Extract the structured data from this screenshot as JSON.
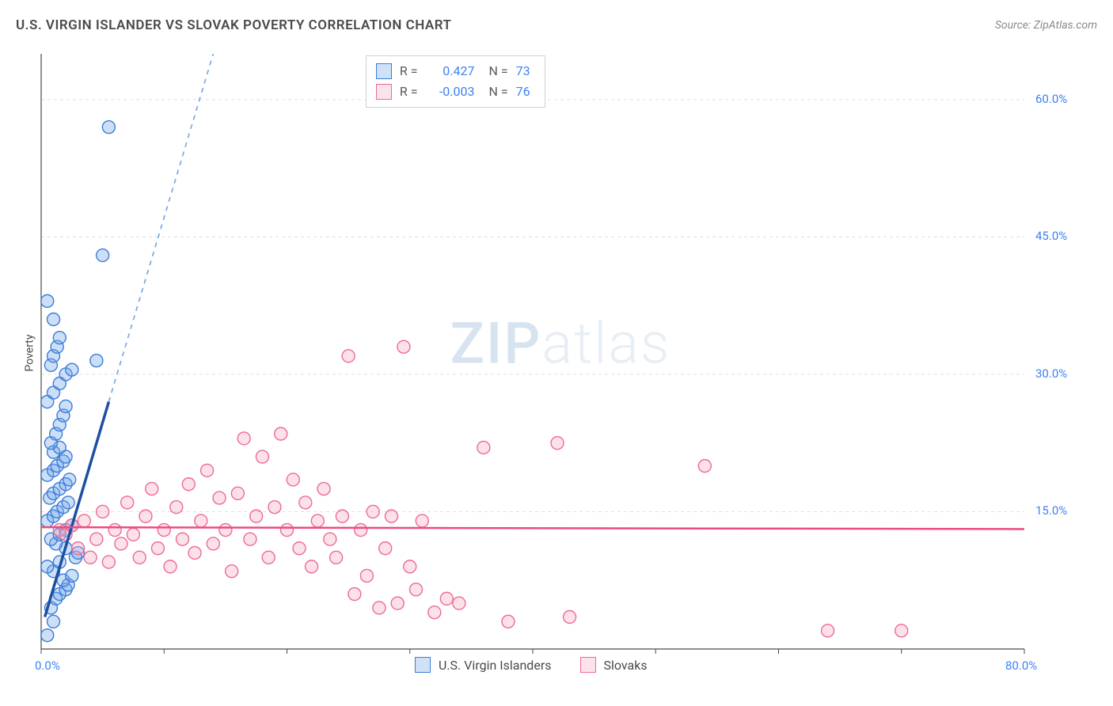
{
  "title": "U.S. VIRGIN ISLANDER VS SLOVAK POVERTY CORRELATION CHART",
  "source_prefix": "Source: ",
  "source": "ZipAtlas.com",
  "watermark_bold": "ZIP",
  "watermark_light": "atlas",
  "y_axis_label": "Poverty",
  "chart": {
    "type": "scatter",
    "background_color": "#ffffff",
    "grid_color": "#e0e0e0",
    "axis_line_color": "#4a4a4a",
    "xlim": [
      0,
      80
    ],
    "ylim": [
      0,
      65
    ],
    "x_ticks": [
      0,
      10,
      20,
      30,
      40,
      50,
      60,
      70,
      80
    ],
    "x_tick_labels": [
      "0.0%",
      "",
      "",
      "",
      "",
      "",
      "",
      "",
      "80.0%"
    ],
    "y_ticks": [
      15,
      30,
      45,
      60
    ],
    "y_tick_labels": [
      "15.0%",
      "30.0%",
      "45.0%",
      "60.0%"
    ],
    "tick_label_color": "#3b82f6",
    "tick_label_fontsize": 15,
    "marker_radius": 8,
    "marker_fill_opacity": 0.35,
    "marker_stroke_width": 1.4,
    "series": [
      {
        "name": "U.S. Virgin Islanders",
        "color": "#6fa4e8",
        "stroke": "#3b7dd8",
        "r_value": "0.427",
        "n_value": "73",
        "trend": {
          "solid_color": "#1e4fa3",
          "solid_width": 3.5,
          "dash_color": "#6fa4e8",
          "dash_width": 1.6,
          "solid": [
            [
              0.3,
              3.5
            ],
            [
              5.5,
              27.0
            ]
          ],
          "dashed": [
            [
              5.5,
              27.0
            ],
            [
              14.0,
              65.0
            ]
          ]
        },
        "points": [
          [
            0.5,
            1.5
          ],
          [
            1.0,
            3.0
          ],
          [
            0.8,
            4.5
          ],
          [
            1.2,
            5.5
          ],
          [
            1.5,
            6.0
          ],
          [
            2.0,
            6.5
          ],
          [
            2.2,
            7.0
          ],
          [
            1.8,
            7.5
          ],
          [
            2.5,
            8.0
          ],
          [
            1.0,
            8.5
          ],
          [
            0.5,
            9.0
          ],
          [
            1.5,
            9.5
          ],
          [
            2.8,
            10.0
          ],
          [
            3.0,
            10.5
          ],
          [
            2.0,
            11.0
          ],
          [
            1.2,
            11.5
          ],
          [
            0.8,
            12.0
          ],
          [
            1.5,
            12.5
          ],
          [
            2.0,
            13.0
          ],
          [
            2.5,
            13.5
          ],
          [
            0.5,
            14.0
          ],
          [
            1.0,
            14.5
          ],
          [
            1.3,
            15.0
          ],
          [
            1.8,
            15.5
          ],
          [
            2.2,
            16.0
          ],
          [
            0.7,
            16.5
          ],
          [
            1.0,
            17.0
          ],
          [
            1.5,
            17.5
          ],
          [
            2.0,
            18.0
          ],
          [
            2.3,
            18.5
          ],
          [
            0.5,
            19.0
          ],
          [
            1.0,
            19.5
          ],
          [
            1.3,
            20.0
          ],
          [
            1.8,
            20.5
          ],
          [
            2.0,
            21.0
          ],
          [
            1.0,
            21.5
          ],
          [
            1.5,
            22.0
          ],
          [
            0.8,
            22.5
          ],
          [
            1.2,
            23.5
          ],
          [
            1.5,
            24.5
          ],
          [
            1.8,
            25.5
          ],
          [
            2.0,
            26.5
          ],
          [
            0.5,
            27.0
          ],
          [
            1.0,
            28.0
          ],
          [
            1.5,
            29.0
          ],
          [
            2.0,
            30.0
          ],
          [
            2.5,
            30.5
          ],
          [
            0.8,
            31.0
          ],
          [
            4.5,
            31.5
          ],
          [
            1.0,
            32.0
          ],
          [
            1.3,
            33.0
          ],
          [
            1.5,
            34.0
          ],
          [
            1.0,
            36.0
          ],
          [
            0.5,
            38.0
          ],
          [
            5.0,
            43.0
          ],
          [
            5.5,
            57.0
          ]
        ]
      },
      {
        "name": "Slovaks",
        "color": "#f5a8c0",
        "stroke": "#ec6b95",
        "r_value": "-0.003",
        "n_value": "76",
        "trend": {
          "solid_color": "#ec4b7c",
          "solid_width": 2.5,
          "solid": [
            [
              0,
              13.3
            ],
            [
              80,
              13.1
            ]
          ]
        },
        "points": [
          [
            1.5,
            13.0
          ],
          [
            2.0,
            12.5
          ],
          [
            2.5,
            13.5
          ],
          [
            3.0,
            11.0
          ],
          [
            3.5,
            14.0
          ],
          [
            4.0,
            10.0
          ],
          [
            4.5,
            12.0
          ],
          [
            5.0,
            15.0
          ],
          [
            5.5,
            9.5
          ],
          [
            6.0,
            13.0
          ],
          [
            6.5,
            11.5
          ],
          [
            7.0,
            16.0
          ],
          [
            7.5,
            12.5
          ],
          [
            8.0,
            10.0
          ],
          [
            8.5,
            14.5
          ],
          [
            9.0,
            17.5
          ],
          [
            9.5,
            11.0
          ],
          [
            10.0,
            13.0
          ],
          [
            10.5,
            9.0
          ],
          [
            11.0,
            15.5
          ],
          [
            11.5,
            12.0
          ],
          [
            12.0,
            18.0
          ],
          [
            12.5,
            10.5
          ],
          [
            13.0,
            14.0
          ],
          [
            13.5,
            19.5
          ],
          [
            14.0,
            11.5
          ],
          [
            14.5,
            16.5
          ],
          [
            15.0,
            13.0
          ],
          [
            15.5,
            8.5
          ],
          [
            16.0,
            17.0
          ],
          [
            16.5,
            23.0
          ],
          [
            17.0,
            12.0
          ],
          [
            17.5,
            14.5
          ],
          [
            18.0,
            21.0
          ],
          [
            18.5,
            10.0
          ],
          [
            19.0,
            15.5
          ],
          [
            19.5,
            23.5
          ],
          [
            20.0,
            13.0
          ],
          [
            20.5,
            18.5
          ],
          [
            21.0,
            11.0
          ],
          [
            21.5,
            16.0
          ],
          [
            22.0,
            9.0
          ],
          [
            22.5,
            14.0
          ],
          [
            23.0,
            17.5
          ],
          [
            23.5,
            12.0
          ],
          [
            24.0,
            10.0
          ],
          [
            24.5,
            14.5
          ],
          [
            25.0,
            32.0
          ],
          [
            25.5,
            6.0
          ],
          [
            26.0,
            13.0
          ],
          [
            26.5,
            8.0
          ],
          [
            27.0,
            15.0
          ],
          [
            27.5,
            4.5
          ],
          [
            28.0,
            11.0
          ],
          [
            28.5,
            14.5
          ],
          [
            29.0,
            5.0
          ],
          [
            29.5,
            33.0
          ],
          [
            30.0,
            9.0
          ],
          [
            30.5,
            6.5
          ],
          [
            31.0,
            14.0
          ],
          [
            32.0,
            4.0
          ],
          [
            33.0,
            5.5
          ],
          [
            34.0,
            5.0
          ],
          [
            36.0,
            22.0
          ],
          [
            38.0,
            3.0
          ],
          [
            42.0,
            22.5
          ],
          [
            43.0,
            3.5
          ],
          [
            54.0,
            20.0
          ],
          [
            64.0,
            2.0
          ],
          [
            70.0,
            2.0
          ]
        ]
      }
    ]
  },
  "corr_legend": {
    "r_label": "R =",
    "n_label": "N ="
  },
  "bottom_legend": {
    "items": [
      "U.S. Virgin Islanders",
      "Slovaks"
    ]
  }
}
